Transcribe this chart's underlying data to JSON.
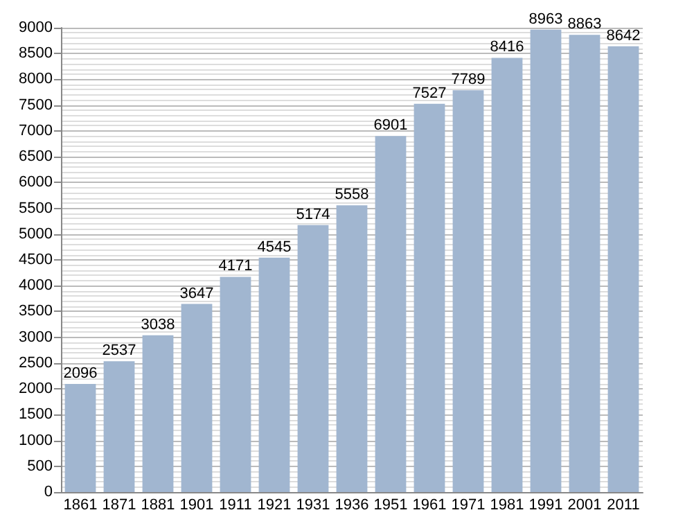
{
  "chart_data": {
    "type": "bar",
    "categories": [
      "1861",
      "1871",
      "1881",
      "1901",
      "1911",
      "1921",
      "1931",
      "1936",
      "1951",
      "1961",
      "1971",
      "1981",
      "1991",
      "2001",
      "2011"
    ],
    "values": [
      2096,
      2537,
      3038,
      3647,
      4171,
      4545,
      5174,
      5558,
      6901,
      7527,
      7789,
      8416,
      8963,
      8863,
      8642
    ],
    "color": "#a1b6d0",
    "ylim": [
      0,
      9000
    ],
    "yticks": [
      0,
      500,
      1000,
      1500,
      2000,
      2500,
      3000,
      3500,
      4000,
      4500,
      5000,
      5500,
      6000,
      6500,
      7000,
      7500,
      8000,
      8500,
      9000
    ],
    "grid": "y",
    "data_labels": true
  }
}
